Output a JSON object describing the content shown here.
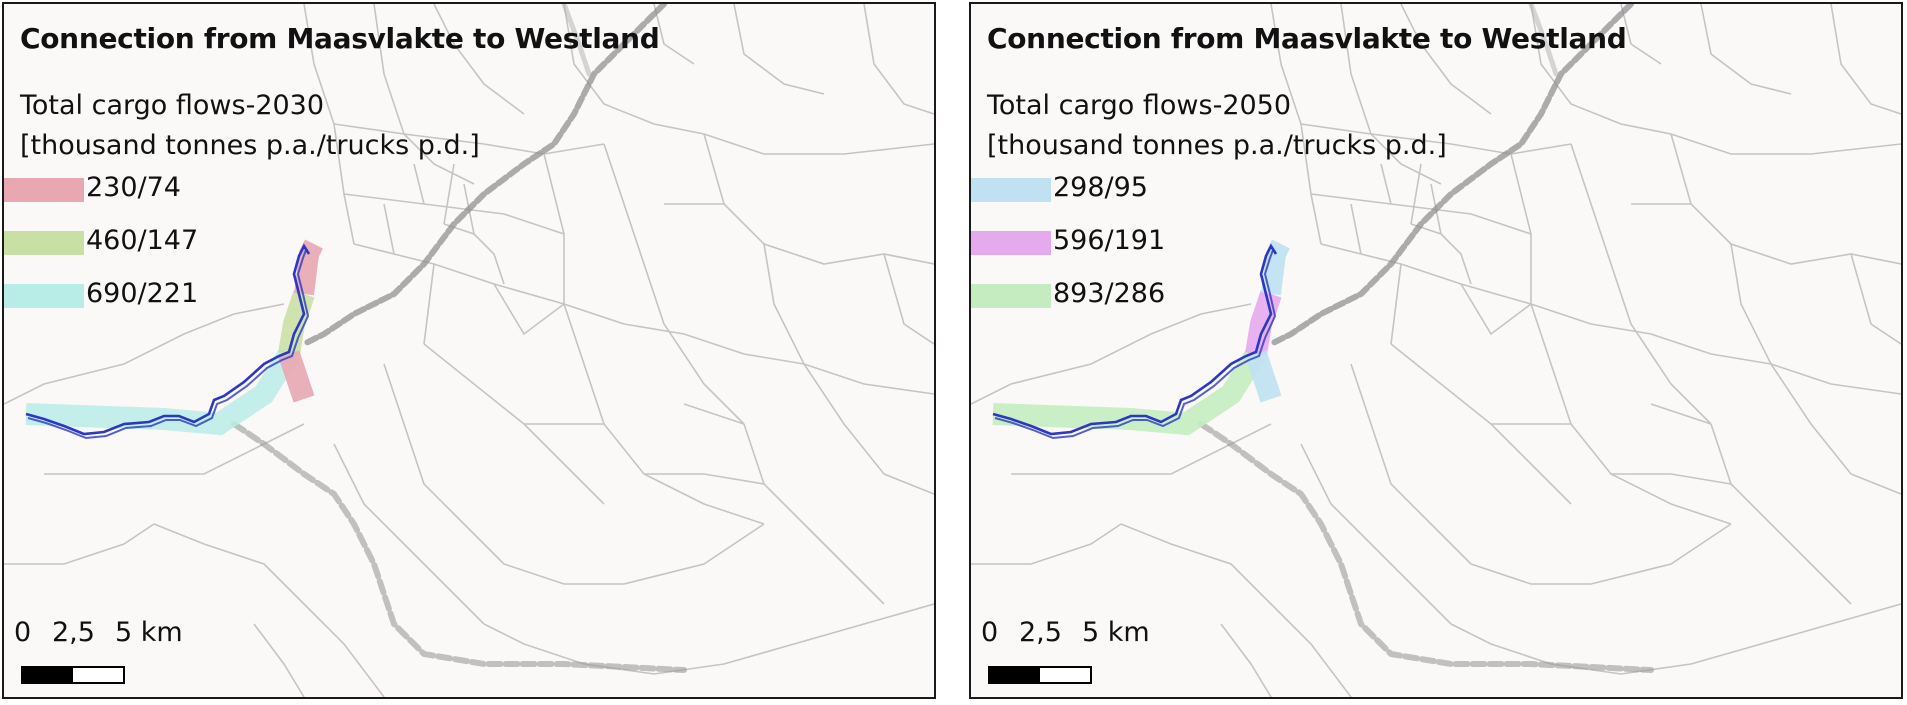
{
  "panels": [
    {
      "title": "Connection from Maasvlakte to Westland",
      "subtitle_line1": "Total cargo flows-2030",
      "subtitle_line2": "[thousand tonnes p.a./trucks p.d.]",
      "legend": [
        {
          "label": "230/74",
          "color": "#e8a7b1"
        },
        {
          "label": "460/147",
          "color": "#c9e0a4"
        },
        {
          "label": "690/221",
          "color": "#b8ece6"
        }
      ]
    },
    {
      "title": "Connection from Maasvlakte to Westland",
      "subtitle_line1": "Total cargo flows-2050",
      "subtitle_line2": "[thousand tonnes p.a./trucks p.d.]",
      "legend": [
        {
          "label": "298/95",
          "color": "#bfe1f2"
        },
        {
          "label": "596/191",
          "color": "#e5a9ee"
        },
        {
          "label": "893/286",
          "color": "#c4ecc0"
        }
      ]
    }
  ],
  "scale": {
    "tick0": "0",
    "tick1": "2,5",
    "tick2": "5 km"
  },
  "colors": {
    "route": "#2b38c2",
    "railway": "#7a7a7a",
    "boundaries": "#c7c2c2",
    "background": "#fbf9f8"
  }
}
